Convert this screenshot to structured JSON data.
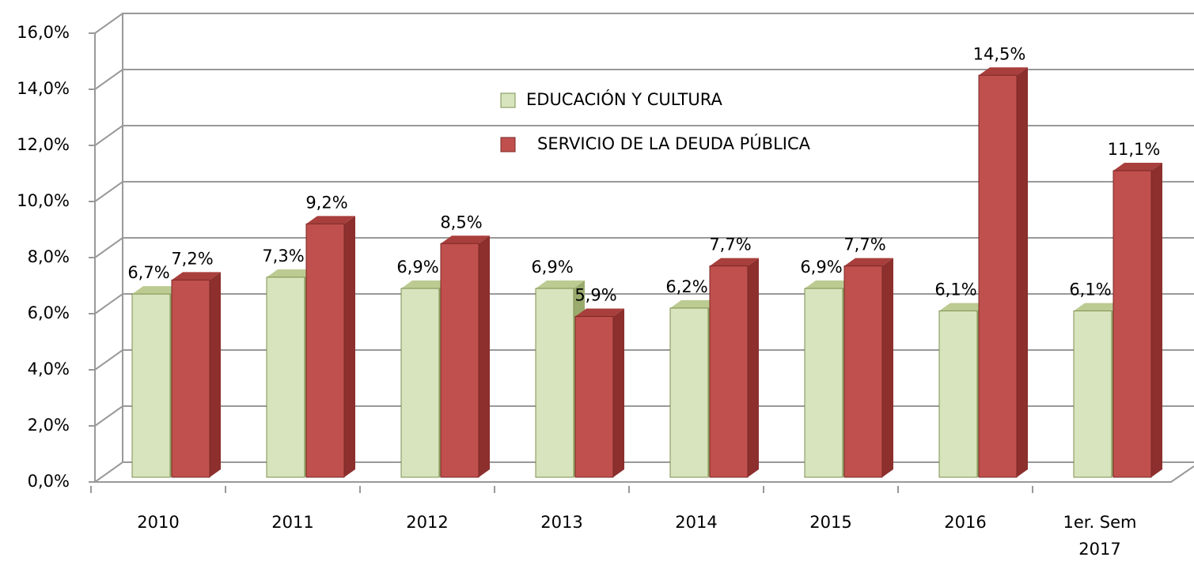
{
  "chart_data": {
    "type": "bar3d",
    "categories": [
      "2010",
      "2011",
      "2012",
      "2013",
      "2014",
      "2015",
      "2016",
      "1er. Sem 2017"
    ],
    "series": [
      {
        "name": "EDUCACIÓN Y CULTURA",
        "color": "#d7e4bd",
        "values": [
          6.7,
          7.3,
          6.9,
          6.9,
          6.2,
          6.9,
          6.1,
          6.1
        ],
        "value_labels": [
          "6,7%",
          "7,3%",
          "6,9%",
          "6,9%",
          "6,2%",
          "6,9%",
          "6,1%",
          "6,1%"
        ]
      },
      {
        "name": "SERVICIO DE LA DEUDA PÚBLICA",
        "color": "#c0504d",
        "values": [
          7.2,
          9.2,
          8.5,
          5.9,
          7.7,
          7.7,
          14.5,
          11.1
        ],
        "value_labels": [
          "7,2%",
          "9,2%",
          "8,5%",
          "5,9%",
          "7,7%",
          "7,7%",
          "14,5%",
          "11,1%"
        ]
      }
    ],
    "ylim": [
      0,
      16
    ],
    "yticks": [
      {
        "value": 0,
        "label": "0,0%"
      },
      {
        "value": 2,
        "label": "2,0%"
      },
      {
        "value": 4,
        "label": "4,0%"
      },
      {
        "value": 6,
        "label": "6,0%"
      },
      {
        "value": 8,
        "label": "8,0%"
      },
      {
        "value": 10,
        "label": "10,0%"
      },
      {
        "value": 12,
        "label": "12,0%"
      },
      {
        "value": 14,
        "label": "14,0%"
      },
      {
        "value": 16,
        "label": "16,0%"
      }
    ],
    "grid": true
  }
}
